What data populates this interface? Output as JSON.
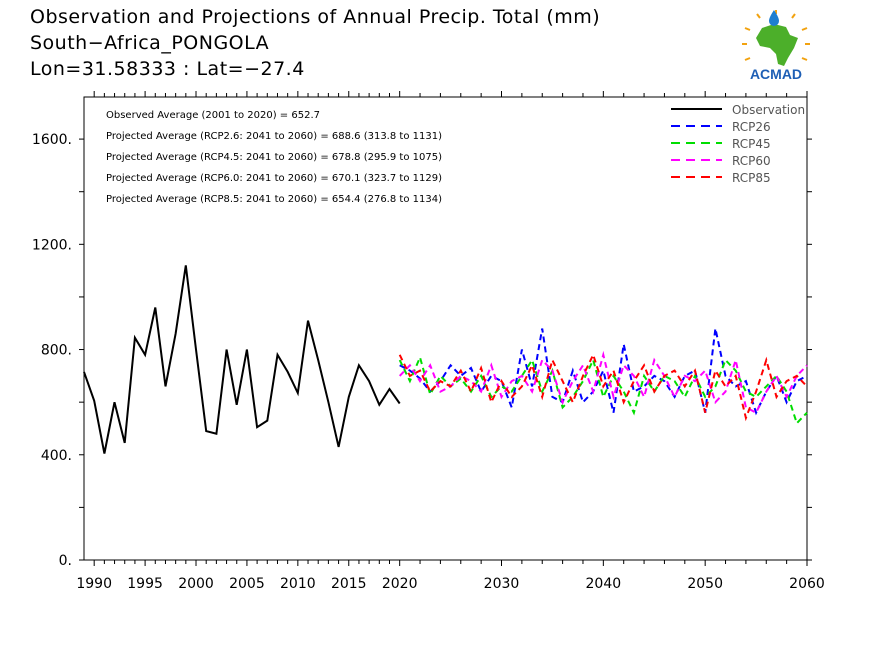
{
  "header": {
    "title_line1": "Observation and Projections of Annual Precip. Total (mm)",
    "title_line2": "South−Africa_PONGOLA",
    "title_line3": "Lon=31.58333 : Lat=−27.4"
  },
  "logo": {
    "text": "ACMAD",
    "colors": {
      "africa": "#4caf2a",
      "drop": "#1e7fd0",
      "sun": "#f2a20f",
      "text": "#1e5fb5"
    }
  },
  "chart_data": {
    "type": "line",
    "xlim": [
      1989,
      2060
    ],
    "ylim": [
      0,
      1760
    ],
    "x_ticks": [
      {
        "v": 1990,
        "label": "1990"
      },
      {
        "v": 1995,
        "label": "1995"
      },
      {
        "v": 2000,
        "label": "2000"
      },
      {
        "v": 2005,
        "label": "2005"
      },
      {
        "v": 2010,
        "label": "2010"
      },
      {
        "v": 2015,
        "label": "2015"
      },
      {
        "v": 2020,
        "label": "2020"
      },
      {
        "v": 2030,
        "label": "2030"
      },
      {
        "v": 2040,
        "label": "2040"
      },
      {
        "v": 2050,
        "label": "2050"
      },
      {
        "v": 2060,
        "label": "2060"
      }
    ],
    "y_ticks": [
      {
        "v": 0,
        "label": "0."
      },
      {
        "v": 400,
        "label": "400."
      },
      {
        "v": 800,
        "label": "800."
      },
      {
        "v": 1200,
        "label": "1200."
      },
      {
        "v": 1600,
        "label": "1600."
      }
    ],
    "annotations": [
      "Observed Average (2001 to 2020) = 652.7",
      "Projected Average (RCP2.6: 2041 to 2060) = 688.6 (313.8 to 1131)",
      "Projected Average (RCP4.5: 2041 to 2060) = 678.8 (295.9 to 1075)",
      "Projected Average (RCP6.0: 2041 to 2060) = 670.1 (323.7 to 1129)",
      "Projected Average (RCP8.5: 2041 to 2060) = 654.4 (276.8 to 1134)"
    ],
    "legend_position": "top-right",
    "series": [
      {
        "name": "Observation",
        "color": "#000000",
        "dashed": false,
        "x": [
          1989,
          1990,
          1991,
          1992,
          1993,
          1994,
          1995,
          1996,
          1997,
          1998,
          1999,
          2000,
          2001,
          2002,
          2003,
          2004,
          2005,
          2006,
          2007,
          2008,
          2009,
          2010,
          2011,
          2012,
          2013,
          2014,
          2015,
          2016,
          2017,
          2018,
          2019,
          2020
        ],
        "y": [
          715,
          605,
          405,
          600,
          445,
          845,
          780,
          960,
          660,
          860,
          1120,
          800,
          490,
          480,
          800,
          590,
          800,
          505,
          530,
          780,
          715,
          635,
          910,
          760,
          600,
          430,
          620,
          740,
          680,
          590,
          650,
          595
        ]
      },
      {
        "name": "RCP26",
        "color": "#0000ff",
        "dashed": true,
        "x": [
          2020,
          2021,
          2022,
          2023,
          2024,
          2025,
          2026,
          2027,
          2028,
          2029,
          2030,
          2031,
          2032,
          2033,
          2034,
          2035,
          2036,
          2037,
          2038,
          2039,
          2040,
          2041,
          2042,
          2043,
          2044,
          2045,
          2046,
          2047,
          2048,
          2049,
          2050,
          2051,
          2052,
          2053,
          2054,
          2055,
          2056,
          2057,
          2058,
          2059,
          2060
        ],
        "y": [
          740,
          720,
          690,
          640,
          680,
          740,
          700,
          730,
          640,
          700,
          680,
          580,
          800,
          660,
          880,
          620,
          600,
          720,
          600,
          640,
          720,
          560,
          820,
          640,
          660,
          700,
          680,
          620,
          700,
          720,
          560,
          880,
          700,
          660,
          680,
          560,
          640,
          700,
          600,
          680,
          700
        ]
      },
      {
        "name": "RCP45",
        "color": "#00dd00",
        "dashed": true,
        "x": [
          2020,
          2021,
          2022,
          2023,
          2024,
          2025,
          2026,
          2027,
          2028,
          2029,
          2030,
          2031,
          2032,
          2033,
          2034,
          2035,
          2036,
          2037,
          2038,
          2039,
          2040,
          2041,
          2042,
          2043,
          2044,
          2045,
          2046,
          2047,
          2048,
          2049,
          2050,
          2051,
          2052,
          2053,
          2054,
          2055,
          2056,
          2057,
          2058,
          2059,
          2060
        ],
        "y": [
          760,
          680,
          770,
          630,
          700,
          660,
          690,
          640,
          700,
          620,
          660,
          640,
          700,
          760,
          640,
          720,
          580,
          620,
          680,
          760,
          620,
          700,
          640,
          560,
          700,
          640,
          700,
          680,
          620,
          700,
          620,
          660,
          760,
          720,
          640,
          620,
          660,
          700,
          640,
          520,
          560
        ]
      },
      {
        "name": "RCP60",
        "color": "#ff00ff",
        "dashed": true,
        "x": [
          2020,
          2021,
          2022,
          2023,
          2024,
          2025,
          2026,
          2027,
          2028,
          2029,
          2030,
          2031,
          2032,
          2033,
          2034,
          2035,
          2036,
          2037,
          2038,
          2039,
          2040,
          2041,
          2042,
          2043,
          2044,
          2045,
          2046,
          2047,
          2048,
          2049,
          2050,
          2051,
          2052,
          2053,
          2054,
          2055,
          2056,
          2057,
          2058,
          2059,
          2060
        ],
        "y": [
          700,
          740,
          680,
          740,
          640,
          660,
          700,
          680,
          640,
          740,
          620,
          680,
          700,
          640,
          760,
          720,
          600,
          680,
          740,
          640,
          780,
          620,
          740,
          700,
          620,
          760,
          700,
          620,
          700,
          680,
          720,
          600,
          640,
          760,
          580,
          560,
          640,
          700,
          620,
          700,
          740
        ]
      },
      {
        "name": "RCP85",
        "color": "#ff0000",
        "dashed": true,
        "x": [
          2020,
          2021,
          2022,
          2023,
          2024,
          2025,
          2026,
          2027,
          2028,
          2029,
          2030,
          2031,
          2032,
          2033,
          2034,
          2035,
          2036,
          2037,
          2038,
          2039,
          2040,
          2041,
          2042,
          2043,
          2044,
          2045,
          2046,
          2047,
          2048,
          2049,
          2050,
          2051,
          2052,
          2053,
          2054,
          2055,
          2056,
          2057,
          2058,
          2059,
          2060
        ],
        "y": [
          780,
          700,
          720,
          640,
          680,
          660,
          720,
          640,
          730,
          600,
          680,
          620,
          660,
          740,
          620,
          760,
          680,
          600,
          700,
          780,
          660,
          720,
          600,
          680,
          740,
          640,
          700,
          720,
          660,
          720,
          560,
          720,
          660,
          700,
          540,
          640,
          760,
          620,
          680,
          700,
          660
        ]
      }
    ]
  }
}
